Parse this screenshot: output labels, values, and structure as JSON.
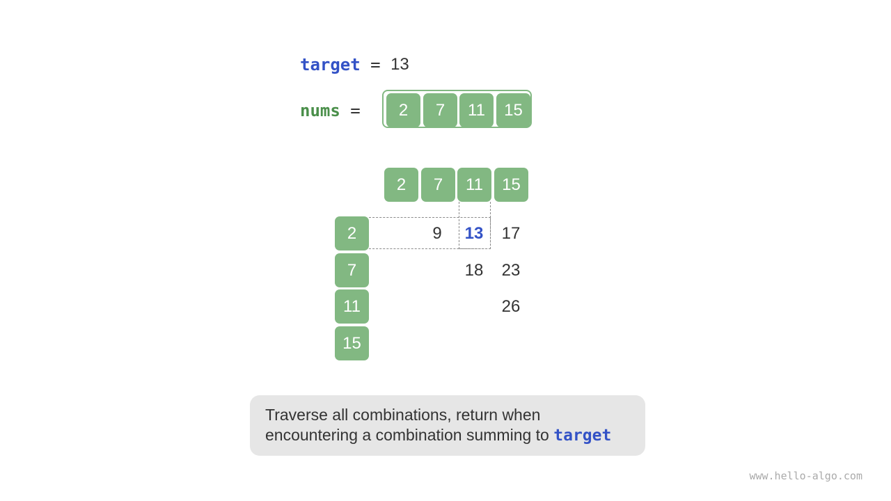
{
  "header": {
    "target_keyword": "target",
    "target_equals": " = ",
    "target_value": "13",
    "nums_keyword": "nums",
    "nums_equals": " = "
  },
  "nums": [
    "2",
    "7",
    "11",
    "15"
  ],
  "matrix": {
    "col_headers": [
      "2",
      "7",
      "11",
      "15"
    ],
    "row_headers": [
      "2",
      "7",
      "11",
      "15"
    ],
    "sums": [
      [
        "",
        "9",
        "13",
        "17"
      ],
      [
        "",
        "",
        "18",
        "23"
      ],
      [
        "",
        "",
        "",
        "26"
      ],
      [
        "",
        "",
        "",
        ""
      ]
    ],
    "highlight": {
      "row": 0,
      "col": 2
    }
  },
  "caption": {
    "line1": "Traverse all combinations, return when",
    "line2": "encountering a combination summing to ",
    "code": "target"
  },
  "watermark": "www.hello-algo.com",
  "colors": {
    "cell_fill": "#82b882",
    "keyword_target": "#3352c6",
    "keyword_nums": "#4a8f4a",
    "caption_bg": "#e6e6e6"
  }
}
